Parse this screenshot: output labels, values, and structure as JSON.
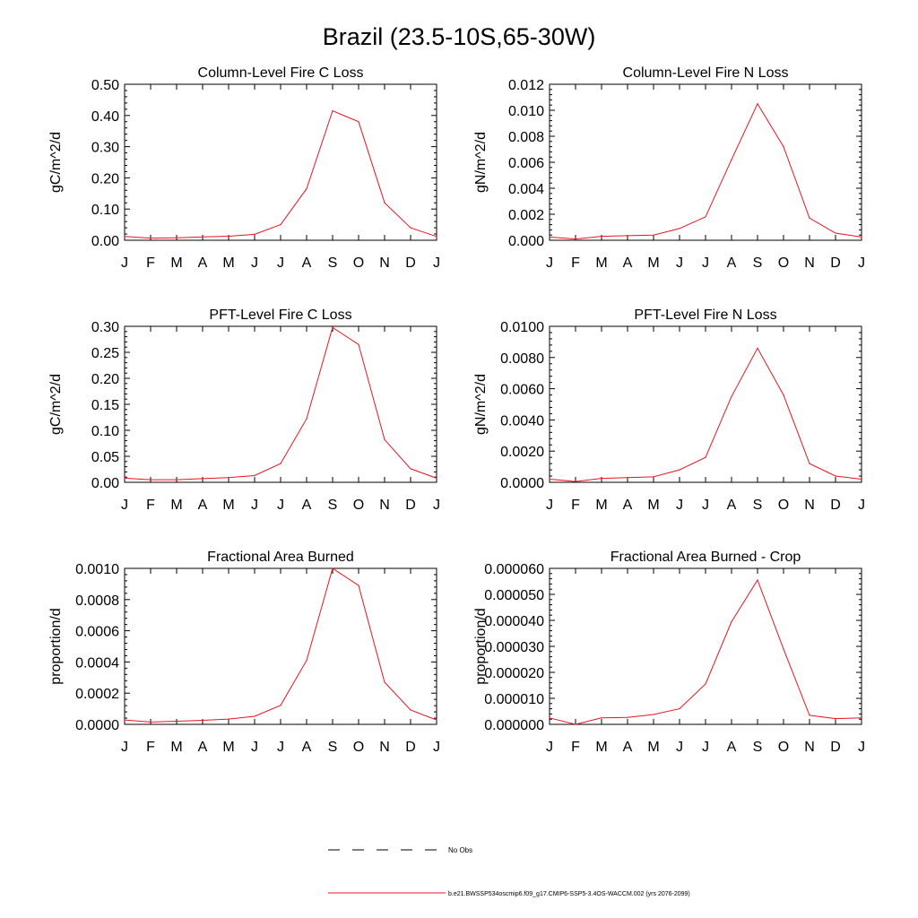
{
  "title": "Brazil (23.5-10S,65-30W)",
  "legend": {
    "obs_label": "No Obs",
    "model_label": "b.e21.BWSSP534oscmip6.f09_g17.CMIP6-SSP5-3.4OS-WACCM.002 (yrs 2076-2099)",
    "model_color": "#e8141e",
    "obs_color": "#000000"
  },
  "chart_data": [
    {
      "type": "line",
      "title": "Column-Level Fire C Loss",
      "xlabel": "",
      "ylabel": "gC/m^2/d",
      "categories": [
        "J",
        "F",
        "M",
        "A",
        "M",
        "J",
        "J",
        "A",
        "S",
        "O",
        "N",
        "D",
        "J"
      ],
      "ylim": [
        0,
        0.5
      ],
      "yticks": [
        0,
        0.1,
        0.2,
        0.3,
        0.4,
        0.5
      ],
      "yticklabels": [
        "0.00",
        "0.10",
        "0.20",
        "0.30",
        "0.40",
        "0.50"
      ],
      "series": [
        {
          "name": "b.e21.BWSSP534oscmip6.f09_g17.CMIP6-SSP5-3.4OS-WACCM.002",
          "values": [
            0.012,
            0.007,
            0.008,
            0.011,
            0.013,
            0.019,
            0.05,
            0.165,
            0.415,
            0.38,
            0.12,
            0.04,
            0.012
          ]
        }
      ]
    },
    {
      "type": "line",
      "title": "Column-Level Fire N Loss",
      "xlabel": "",
      "ylabel": "gN/m^2/d",
      "categories": [
        "J",
        "F",
        "M",
        "A",
        "M",
        "J",
        "J",
        "A",
        "S",
        "O",
        "N",
        "D",
        "J"
      ],
      "ylim": [
        0,
        0.012
      ],
      "yticks": [
        0,
        0.002,
        0.004,
        0.006,
        0.008,
        0.01,
        0.012
      ],
      "yticklabels": [
        "0.000",
        "0.002",
        "0.004",
        "0.006",
        "0.008",
        "0.010",
        "0.012"
      ],
      "series": [
        {
          "name": "b.e21.BWSSP534oscmip6.f09_g17.CMIP6-SSP5-3.4OS-WACCM.002",
          "values": [
            0.00025,
            0.0001,
            0.0003,
            0.00035,
            0.0004,
            0.0009,
            0.0018,
            0.0062,
            0.0105,
            0.0072,
            0.0017,
            0.00055,
            0.00025
          ]
        }
      ]
    },
    {
      "type": "line",
      "title": "PFT-Level Fire C Loss",
      "xlabel": "",
      "ylabel": "gC/m^2/d",
      "categories": [
        "J",
        "F",
        "M",
        "A",
        "M",
        "J",
        "J",
        "A",
        "S",
        "O",
        "N",
        "D",
        "J"
      ],
      "ylim": [
        0,
        0.3
      ],
      "yticks": [
        0,
        0.05,
        0.1,
        0.15,
        0.2,
        0.25,
        0.3
      ],
      "yticklabels": [
        "0.00",
        "0.05",
        "0.10",
        "0.15",
        "0.20",
        "0.25",
        "0.30"
      ],
      "series": [
        {
          "name": "b.e21.BWSSP534oscmip6.f09_g17.CMIP6-SSP5-3.4OS-WACCM.002",
          "values": [
            0.008,
            0.005,
            0.005,
            0.007,
            0.009,
            0.013,
            0.036,
            0.122,
            0.298,
            0.265,
            0.082,
            0.026,
            0.008
          ]
        }
      ]
    },
    {
      "type": "line",
      "title": "PFT-Level Fire N Loss",
      "xlabel": "",
      "ylabel": "gN/m^2/d",
      "categories": [
        "J",
        "F",
        "M",
        "A",
        "M",
        "J",
        "J",
        "A",
        "S",
        "O",
        "N",
        "D",
        "J"
      ],
      "ylim": [
        0,
        0.01
      ],
      "yticks": [
        0,
        0.002,
        0.004,
        0.006,
        0.008,
        0.01
      ],
      "yticklabels": [
        "0.0000",
        "0.0020",
        "0.0040",
        "0.0060",
        "0.0080",
        "0.0100"
      ],
      "series": [
        {
          "name": "b.e21.BWSSP534oscmip6.f09_g17.CMIP6-SSP5-3.4OS-WACCM.002",
          "values": [
            0.0002,
            5e-05,
            0.00025,
            0.0003,
            0.00035,
            0.0008,
            0.0016,
            0.0055,
            0.0086,
            0.0056,
            0.0012,
            0.0004,
            0.0002
          ]
        }
      ]
    },
    {
      "type": "line",
      "title": "Fractional Area Burned",
      "xlabel": "",
      "ylabel": "proportion/d",
      "categories": [
        "J",
        "F",
        "M",
        "A",
        "M",
        "J",
        "J",
        "A",
        "S",
        "O",
        "N",
        "D",
        "J"
      ],
      "ylim": [
        0,
        0.001
      ],
      "yticks": [
        0,
        0.0002,
        0.0004,
        0.0006,
        0.0008,
        0.001
      ],
      "yticklabels": [
        "0.0000",
        "0.0002",
        "0.0004",
        "0.0006",
        "0.0008",
        "0.0010"
      ],
      "series": [
        {
          "name": "b.e21.BWSSP534oscmip6.f09_g17.CMIP6-SSP5-3.4OS-WACCM.002",
          "values": [
            2.8e-05,
            1.5e-05,
            2e-05,
            2.6e-05,
            3.4e-05,
            5.2e-05,
            0.000122,
            0.00041,
            0.001,
            0.00089,
            0.00027,
            9.2e-05,
            2.8e-05
          ]
        }
      ]
    },
    {
      "type": "line",
      "title": "Fractional Area Burned - Crop",
      "xlabel": "",
      "ylabel": "proportion/d",
      "categories": [
        "J",
        "F",
        "M",
        "A",
        "M",
        "J",
        "J",
        "A",
        "S",
        "O",
        "N",
        "D",
        "J"
      ],
      "ylim": [
        0,
        6e-05
      ],
      "yticks": [
        0,
        1e-05,
        2e-05,
        3e-05,
        4e-05,
        5e-05,
        6e-05
      ],
      "yticklabels": [
        "0.000000",
        "0.000010",
        "0.000020",
        "0.000030",
        "0.000040",
        "0.000050",
        "0.000060"
      ],
      "series": [
        {
          "name": "b.e21.BWSSP534oscmip6.f09_g17.CMIP6-SSP5-3.4OS-WACCM.002",
          "values": [
            2.5e-06,
            0.0,
            2.5e-06,
            2.7e-06,
            3.8e-06,
            6e-06,
            1.55e-05,
            3.95e-05,
            5.55e-05,
            2.9e-05,
            3.5e-06,
            2.2e-06,
            2.5e-06
          ]
        }
      ]
    }
  ]
}
